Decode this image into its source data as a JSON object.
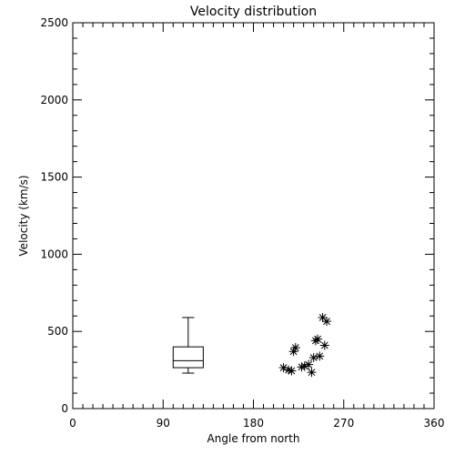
{
  "chart_data": {
    "type": "scatter",
    "title": "Velocity distribution",
    "xlabel": "Angle from north",
    "ylabel": "Velocity (km/s)",
    "xlim": [
      0,
      360
    ],
    "ylim": [
      0,
      2500
    ],
    "xticks": [
      0,
      90,
      180,
      270,
      360
    ],
    "yticks": [
      0,
      500,
      1000,
      1500,
      2000,
      2500
    ],
    "x_minor_step": 10,
    "y_minor_step": 100,
    "grid": false,
    "legend": "none",
    "boxplot": {
      "x": 115,
      "width": 30,
      "whisker_low": 230,
      "q1": 265,
      "median": 310,
      "q3": 400,
      "whisker_high": 590
    },
    "points": [
      {
        "x": 210,
        "y": 265
      },
      {
        "x": 215,
        "y": 250
      },
      {
        "x": 218,
        "y": 245
      },
      {
        "x": 220,
        "y": 370
      },
      {
        "x": 222,
        "y": 395
      },
      {
        "x": 228,
        "y": 270
      },
      {
        "x": 231,
        "y": 275
      },
      {
        "x": 235,
        "y": 285
      },
      {
        "x": 238,
        "y": 235
      },
      {
        "x": 240,
        "y": 330
      },
      {
        "x": 242,
        "y": 440
      },
      {
        "x": 244,
        "y": 450
      },
      {
        "x": 246,
        "y": 340
      },
      {
        "x": 249,
        "y": 590
      },
      {
        "x": 251,
        "y": 410
      },
      {
        "x": 253,
        "y": 565
      }
    ],
    "marker": "asterisk",
    "color": "#000000"
  }
}
